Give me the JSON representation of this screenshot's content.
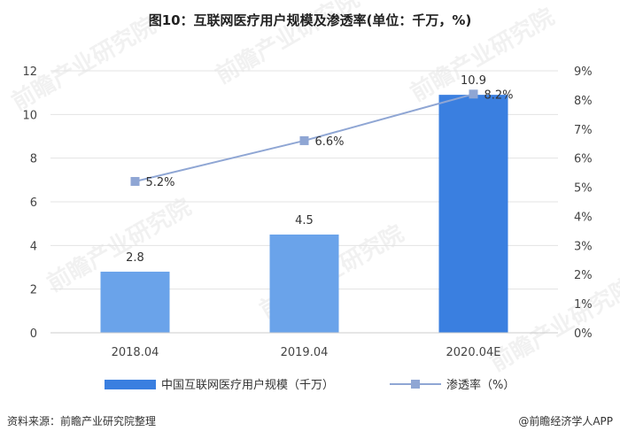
{
  "title": "图10：互联网医疗用户规模及渗透率(单位：千万，%)",
  "source": "资料来源：前瞻产业研究院整理",
  "logo": "@前瞻经济学人APP",
  "watermark": "前瞻产业研究院",
  "colors": {
    "bar_light": "#6aa3ea",
    "bar_dark": "#3a7fe0",
    "line": "#8fa6d4",
    "marker": "#8fa6d4",
    "grid": "#e3e3e3"
  },
  "chart_data": {
    "type": "bar",
    "categories": [
      "2018.04",
      "2019.04",
      "2020.04E"
    ],
    "series": [
      {
        "name": "中国互联网医疗用户规模（千万）",
        "type": "bar",
        "axis": "left",
        "values": [
          2.8,
          4.5,
          10.9
        ]
      },
      {
        "name": "渗透率（%）",
        "type": "line",
        "axis": "right",
        "values": [
          5.2,
          6.6,
          8.2
        ]
      }
    ],
    "bar_labels": [
      "2.8",
      "4.5",
      "10.9"
    ],
    "line_labels": [
      "5.2%",
      "6.6%",
      "8.2%"
    ],
    "left_axis": {
      "ylim": [
        0,
        12
      ],
      "ticks": [
        "0",
        "2",
        "4",
        "6",
        "8",
        "10",
        "12"
      ]
    },
    "right_axis": {
      "ylim": [
        0,
        9
      ],
      "ticks": [
        "0%",
        "1%",
        "2%",
        "3%",
        "4%",
        "5%",
        "6%",
        "7%",
        "8%",
        "9%"
      ]
    },
    "legend": {
      "position": "bottom",
      "entries": [
        "中国互联网医疗用户规模（千万）",
        "渗透率（%）"
      ]
    },
    "grid": true
  }
}
